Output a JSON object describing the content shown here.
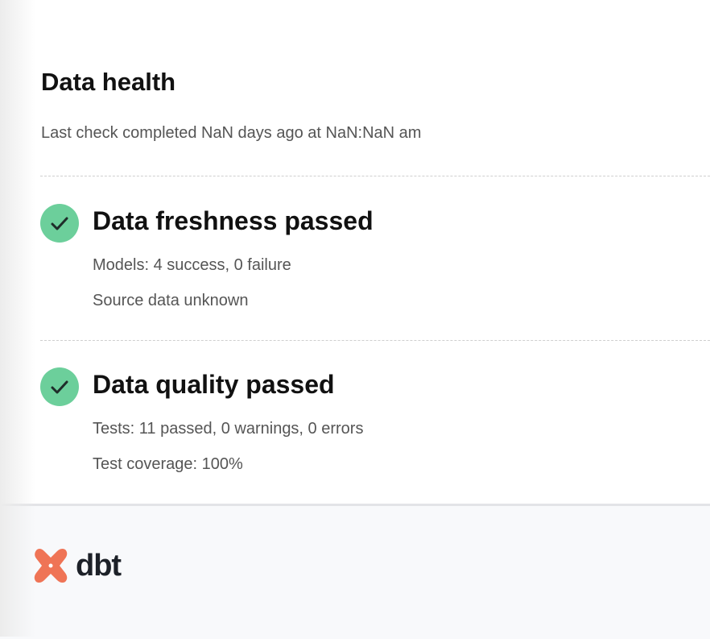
{
  "header": {
    "title": "Data health",
    "subtitle": "Last check completed NaN days ago at NaN:NaN am"
  },
  "sections": [
    {
      "icon": "check-circle-icon",
      "title": "Data freshness passed",
      "lines": [
        "Models: 4 success, 0 failure",
        "Source data unknown"
      ]
    },
    {
      "icon": "check-circle-icon",
      "title": "Data quality passed",
      "lines": [
        "Tests: 11 passed, 0 warnings, 0 errors",
        "Test coverage: 100%"
      ]
    }
  ],
  "footer": {
    "logo_text": "dbt"
  },
  "colors": {
    "success": "#6ccf9b",
    "brand": "#ef7456"
  }
}
